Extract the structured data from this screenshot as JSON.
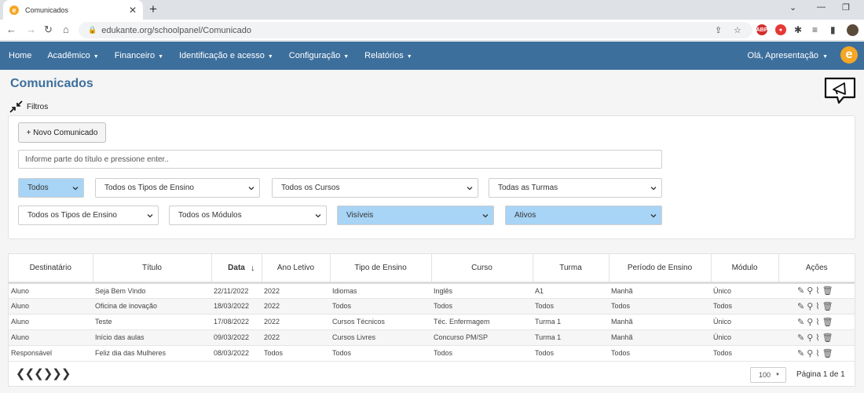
{
  "browser": {
    "tab_title": "Comunicados",
    "favicon_letter": "e",
    "url": "edukante.org/schoolpanel/Comunicado"
  },
  "nav": {
    "items": [
      "Home",
      "Acadêmico",
      "Financeiro",
      "Identificação e acesso",
      "Configuração",
      "Relatórios"
    ],
    "user": "Olá, Apresentação",
    "logo_letter": "e"
  },
  "page": {
    "title": "Comunicados",
    "filters_label": "Filtros"
  },
  "filters": {
    "new_button": "+ Novo Comunicado",
    "search_placeholder": "Informe parte do título e pressione enter..",
    "row1": [
      "Todos",
      "Todos os Tipos de Ensino",
      "Todos os Cursos",
      "Todas as Turmas"
    ],
    "row2": [
      "Todos os Tipos de Ensino",
      "Todos os Módulos",
      "Visíveis",
      "Ativos"
    ]
  },
  "table": {
    "headers": [
      "Destinatário",
      "Título",
      "Data",
      "Ano Letivo",
      "Tipo de Ensino",
      "Curso",
      "Turma",
      "Período de Ensino",
      "Módulo",
      "Ações"
    ],
    "rows": [
      [
        "Aluno",
        "Seja Bem Vindo",
        "22/11/2022",
        "2022",
        "Idiomas",
        "Inglês",
        "A1",
        "Manhã",
        "Único"
      ],
      [
        "Aluno",
        "Oficina de inovação",
        "18/03/2022",
        "2022",
        "Todos",
        "Todos",
        "Todos",
        "Todos",
        "Todos"
      ],
      [
        "Aluno",
        "Teste",
        "17/08/2022",
        "2022",
        "Cursos Técnicos",
        "Téc. Enfermagem",
        "Turma 1",
        "Manhã",
        "Único"
      ],
      [
        "Aluno",
        "Início das aulas",
        "09/03/2022",
        "2022",
        "Cursos Livres",
        "Concurso PM/SP",
        "Turma 1",
        "Manhã",
        "Único"
      ],
      [
        "Responsável",
        "Feliz dia das Mulheres",
        "08/03/2022",
        "Todos",
        "Todos",
        "Todos",
        "Todos",
        "Todos",
        "Todos"
      ]
    ]
  },
  "pager": {
    "per_page": "100",
    "page_info": "Página 1 de 1"
  },
  "colors": {
    "nav_bg": "#3d6f9c",
    "title": "#3d6f9c",
    "highlight_select": "#a8d4f5",
    "logo": "#f5a623"
  }
}
